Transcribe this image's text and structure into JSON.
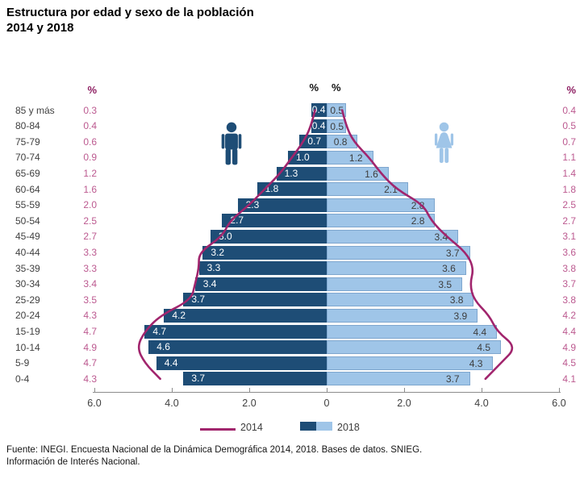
{
  "header": {
    "title_lines": [
      "Estructura por edad y sexo de la población",
      "2014 y 2018"
    ]
  },
  "labels": {
    "pct_symbol": "%"
  },
  "chart_data": {
    "type": "bar",
    "subtype": "population_pyramid",
    "title": "Estructura por edad y sexo de la población 2014 y 2018",
    "categories": [
      "85 y más",
      "80-84",
      "75-79",
      "70-74",
      "65-69",
      "60-64",
      "55-59",
      "50-54",
      "45-49",
      "40-44",
      "35-39",
      "30-34",
      "25-29",
      "20-24",
      "15-19",
      "10-14",
      "5-9",
      "0-4"
    ],
    "series": [
      {
        "name": "2014 Hombres",
        "style": "line",
        "values": [
          0.3,
          0.4,
          0.6,
          0.9,
          1.2,
          1.6,
          2.0,
          2.5,
          2.7,
          3.3,
          3.3,
          3.4,
          3.5,
          4.3,
          4.7,
          4.9,
          4.7,
          4.3
        ]
      },
      {
        "name": "2014 Mujeres",
        "style": "line",
        "values": [
          0.4,
          0.5,
          0.7,
          1.1,
          1.4,
          1.8,
          2.5,
          2.7,
          3.1,
          3.6,
          3.8,
          3.7,
          3.8,
          4.2,
          4.4,
          4.9,
          4.5,
          4.1
        ]
      },
      {
        "name": "2018 Hombres",
        "style": "bar",
        "values": [
          0.4,
          0.4,
          0.7,
          1.0,
          1.3,
          1.8,
          2.3,
          2.7,
          3.0,
          3.2,
          3.3,
          3.4,
          3.7,
          4.2,
          4.7,
          4.6,
          4.4,
          3.7
        ]
      },
      {
        "name": "2018 Mujeres",
        "style": "bar",
        "values": [
          0.5,
          0.5,
          0.8,
          1.2,
          1.6,
          2.1,
          2.8,
          2.8,
          3.4,
          3.7,
          3.6,
          3.5,
          3.8,
          3.9,
          4.4,
          4.5,
          4.3,
          3.7
        ]
      }
    ],
    "axis": {
      "tick_labels": [
        "6.0",
        "4.0",
        "2.0",
        "0",
        "2.0",
        "4.0",
        "6.0"
      ],
      "max_each_side": 6.0,
      "grid": false
    },
    "legend_position": "bottom"
  },
  "legend": {
    "items": [
      {
        "label": "2014",
        "swatch": "line"
      },
      {
        "label": "2018",
        "swatch": "bars"
      }
    ]
  },
  "source": {
    "lines": [
      "Fuente: INEGI. Encuesta Nacional de la Dinámica Demográfica 2014, 2018. Bases de datos. SNIEG.",
      "Información de Interés Nacional."
    ]
  },
  "colors": {
    "male_bar": "#1E4D76",
    "female_bar": "#9FC5E8",
    "female_bar_border": "#7EA6CE",
    "line_2014": "#A1256D",
    "pct_text": "#BC5A90",
    "pct_header": "#8E1F62",
    "axis": "#8c8c8c"
  }
}
